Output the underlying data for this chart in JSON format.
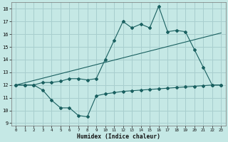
{
  "xlabel": "Humidex (Indice chaleur)",
  "xlim": [
    -0.5,
    23.5
  ],
  "ylim": [
    8.8,
    18.5
  ],
  "yticks": [
    9,
    10,
    11,
    12,
    13,
    14,
    15,
    16,
    17,
    18
  ],
  "xticks": [
    0,
    1,
    2,
    3,
    4,
    5,
    6,
    7,
    8,
    9,
    10,
    11,
    12,
    13,
    14,
    15,
    16,
    17,
    18,
    19,
    20,
    21,
    22,
    23
  ],
  "bg_color": "#c5e8e5",
  "grid_color": "#a8cece",
  "line_color": "#1a6060",
  "line1_x": [
    0,
    1,
    2,
    3,
    4,
    5,
    6,
    7,
    8,
    9,
    10,
    11,
    12,
    13,
    14,
    15,
    16,
    17,
    18,
    19,
    20,
    21,
    22,
    23
  ],
  "line1_y": [
    12,
    12,
    12,
    11.6,
    10.8,
    10.2,
    10.2,
    9.6,
    9.5,
    11.15,
    11.3,
    11.4,
    11.5,
    11.55,
    11.6,
    11.65,
    11.7,
    11.75,
    11.8,
    11.85,
    11.9,
    11.95,
    12.0,
    12.0
  ],
  "line2_x": [
    0,
    1,
    2,
    3,
    4,
    5,
    6,
    7,
    8,
    9,
    10,
    11,
    12,
    13,
    14,
    15,
    16,
    17,
    18,
    19,
    20,
    21,
    22,
    23
  ],
  "line2_y": [
    12,
    12,
    12,
    12.2,
    12.2,
    12.3,
    12.5,
    12.5,
    12.4,
    12.5,
    14.0,
    15.5,
    17.0,
    16.5,
    16.8,
    16.5,
    18.2,
    16.2,
    16.3,
    16.2,
    14.8,
    13.4,
    12.0,
    12.0
  ],
  "line3_x": [
    0,
    23
  ],
  "line3_y": [
    12,
    16.1
  ]
}
